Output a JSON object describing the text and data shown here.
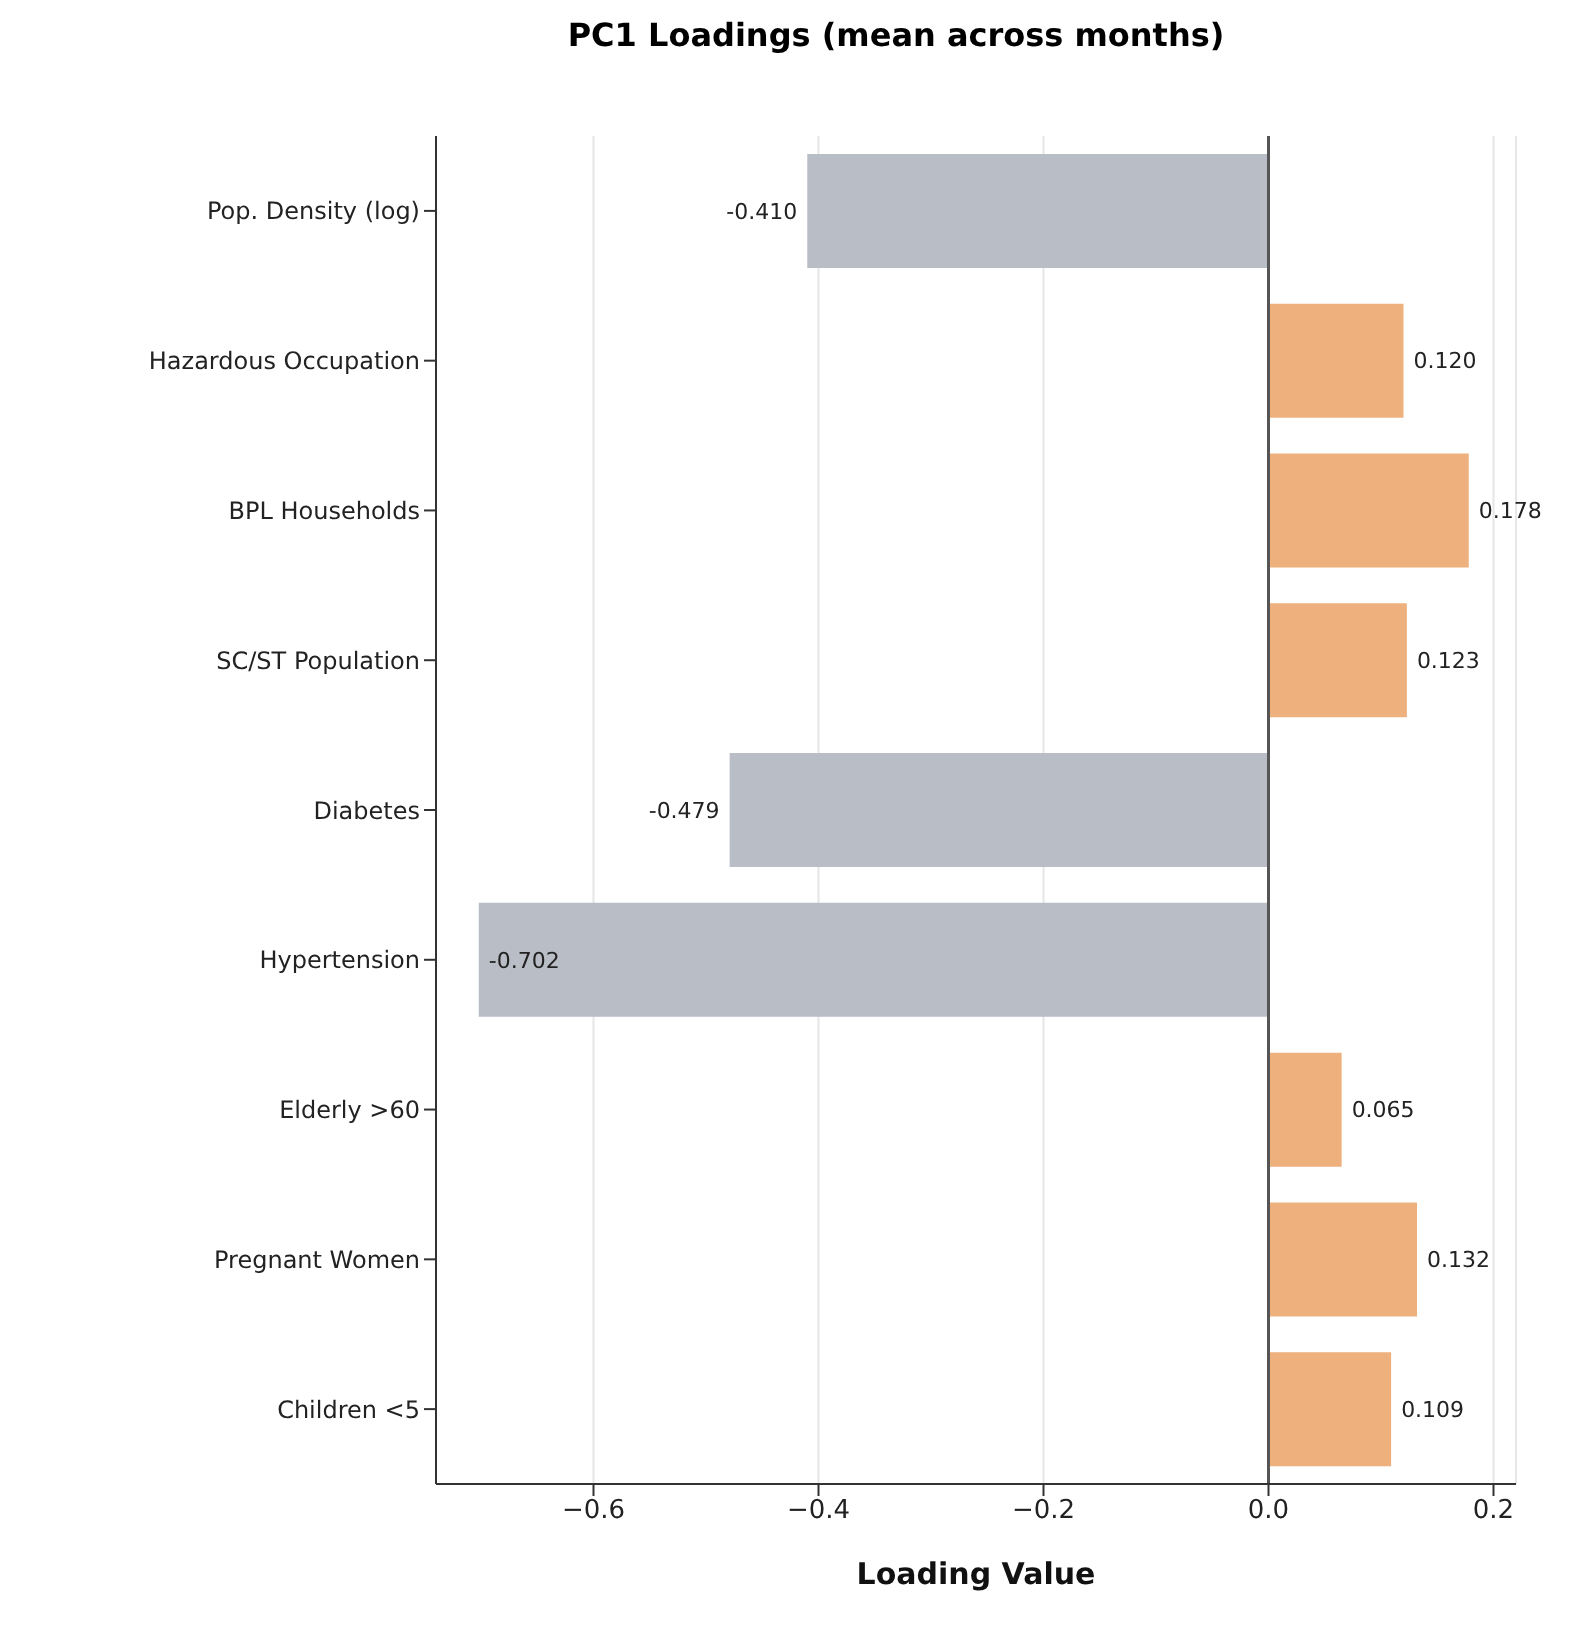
{
  "chart_data": {
    "type": "bar",
    "orientation": "horizontal",
    "title": "PC1 Loadings (mean across months)",
    "xlabel": "Loading Value",
    "categories": [
      "Pop. Density (log)",
      "Hazardous Occupation",
      "BPL Households",
      "SC/ST Population",
      "Diabetes",
      "Hypertension",
      "Elderly >60",
      "Pregnant Women",
      "Children <5"
    ],
    "values": [
      -0.41,
      0.12,
      0.178,
      0.123,
      -0.479,
      -0.702,
      0.065,
      0.132,
      0.109
    ],
    "colors": [
      "#b9bec6",
      "#eeb17e",
      "#eeb17e",
      "#eeb17e",
      "#b9bec6",
      "#b9bec6",
      "#eeb17e",
      "#eeb17e",
      "#eeb17e"
    ],
    "value_labels": [
      "-0.410",
      "0.120",
      "0.178",
      "0.123",
      "-0.479",
      "-0.702",
      "0.065",
      "0.132",
      "0.109"
    ],
    "xlim": [
      -0.74,
      0.22
    ],
    "xticks": [
      {
        "value": -0.6,
        "label": "−0.6"
      },
      {
        "value": -0.4,
        "label": "−0.4"
      },
      {
        "value": -0.2,
        "label": "−0.2"
      },
      {
        "value": 0,
        "label": "0.0"
      },
      {
        "value": 0.2,
        "label": "0.2"
      }
    ],
    "ref_lines": [
      {
        "axis": "x",
        "value": 0,
        "color": "#555555"
      }
    ],
    "grid": "x"
  }
}
